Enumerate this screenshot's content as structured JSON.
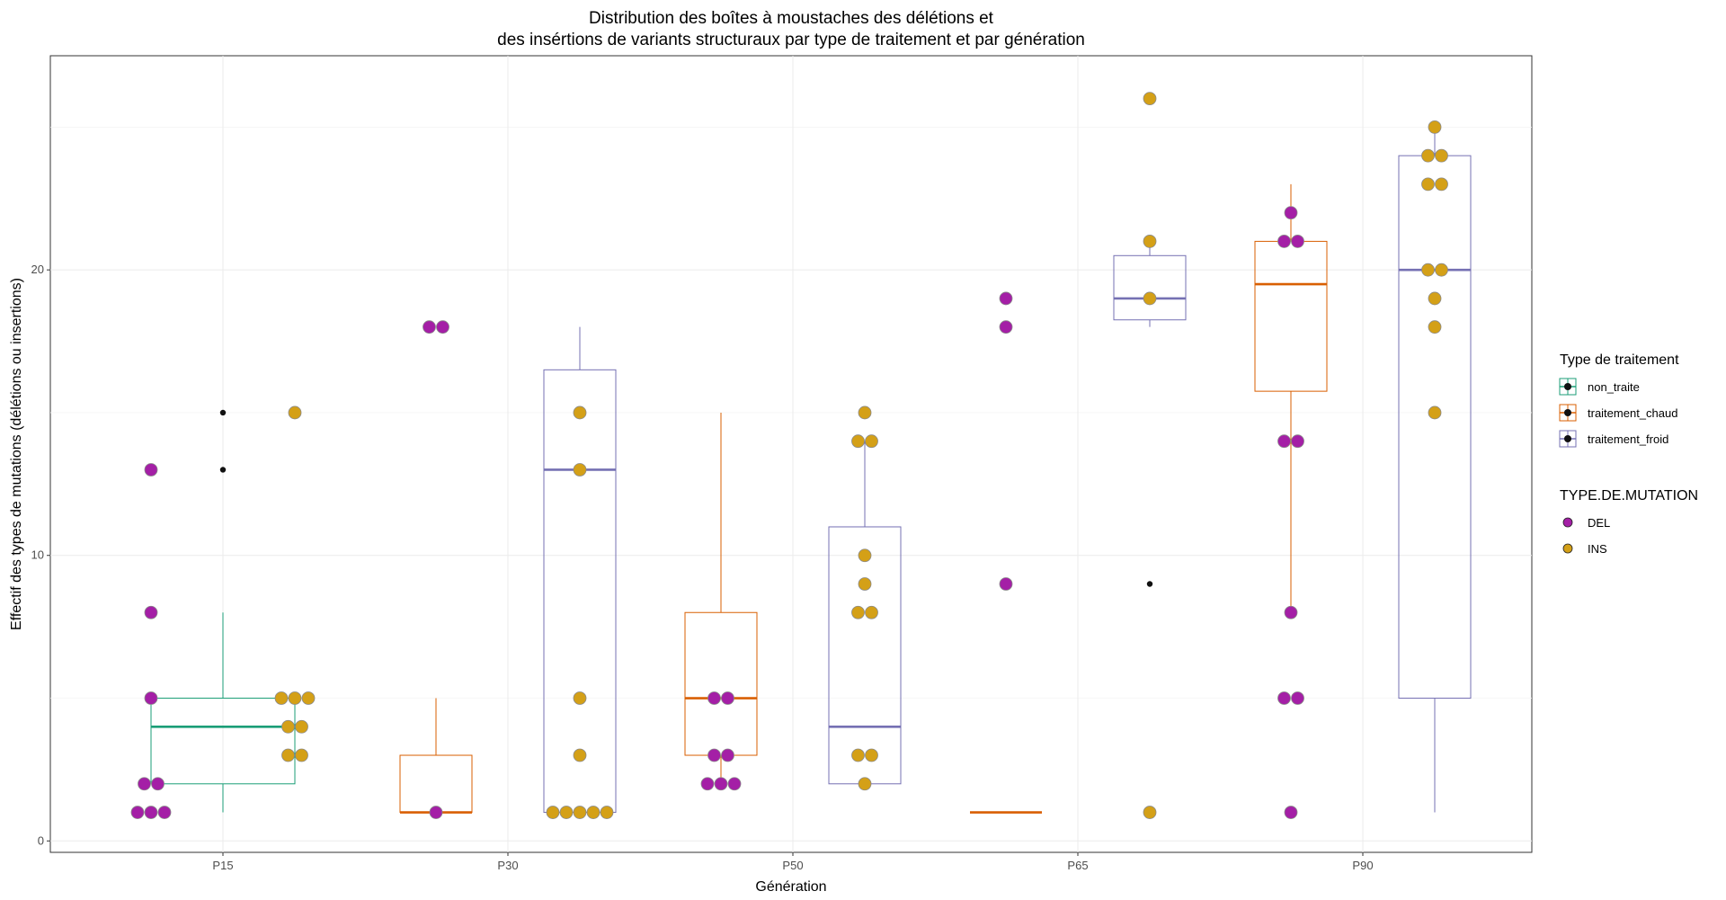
{
  "chart_data": {
    "type": "box",
    "title_lines": [
      "Distribution des boîtes à moustaches des délétions et",
      "des insértions de variants structuraux  par type de traitement et par génération"
    ],
    "xlabel": "Génération",
    "ylabel": "Effectif des types de mutations (délétions ou insertions)",
    "categories": [
      "P15",
      "P30",
      "P50",
      "P65",
      "P90"
    ],
    "y_ticks": [
      0,
      10,
      20
    ],
    "ylim": [
      -0.4,
      27.5
    ],
    "grid": true,
    "legends": [
      {
        "title": "Type de traitement",
        "entries": [
          {
            "label": "non_traite",
            "color": "#1b9e77"
          },
          {
            "label": "traitement_chaud",
            "color": "#d95f02"
          },
          {
            "label": "traitement_froid",
            "color": "#7570b3"
          }
        ]
      },
      {
        "title": "TYPE.DE.MUTATION",
        "entries": [
          {
            "label": "DEL",
            "color": "#a41fa6"
          },
          {
            "label": "INS",
            "color": "#d4a017"
          }
        ]
      }
    ],
    "boxes": [
      {
        "generation": "P15",
        "treatment": "non_traite",
        "color": "#1b9e77",
        "lower": 1,
        "q1": 2,
        "median": 4,
        "q3": 5,
        "upper": 8,
        "outliers": [
          13,
          15
        ]
      },
      {
        "generation": "P30",
        "treatment": "traitement_chaud",
        "color": "#d95f02",
        "lower": 1,
        "q1": 1,
        "median": 1,
        "q3": 3,
        "upper": 5,
        "outliers": []
      },
      {
        "generation": "P30",
        "treatment": "traitement_froid",
        "color": "#7570b3",
        "lower": 1,
        "q1": 1,
        "median": 13,
        "q3": 16.5,
        "upper": 18,
        "outliers": []
      },
      {
        "generation": "P50",
        "treatment": "traitement_chaud",
        "color": "#d95f02",
        "lower": 2,
        "q1": 3,
        "median": 5,
        "q3": 8,
        "upper": 15,
        "outliers": []
      },
      {
        "generation": "P50",
        "treatment": "traitement_froid",
        "color": "#7570b3",
        "lower": 2,
        "q1": 2,
        "median": 4,
        "q3": 11,
        "upper": 14,
        "outliers": []
      },
      {
        "generation": "P65",
        "treatment": "traitement_chaud",
        "color": "#d95f02",
        "lower": 1,
        "q1": 1,
        "median": 1,
        "q3": 1,
        "upper": 1,
        "outliers": []
      },
      {
        "generation": "P65",
        "treatment": "traitement_froid",
        "color": "#7570b3",
        "lower": 18,
        "q1": 18.25,
        "median": 19,
        "q3": 20.5,
        "upper": 21,
        "outliers": [
          9,
          26
        ]
      },
      {
        "generation": "P90",
        "treatment": "traitement_chaud",
        "color": "#d95f02",
        "lower": 8,
        "q1": 15.75,
        "median": 19.5,
        "q3": 21,
        "upper": 23,
        "outliers": []
      },
      {
        "generation": "P90",
        "treatment": "traitement_froid",
        "color": "#7570b3",
        "lower": 1,
        "q1": 5,
        "median": 20,
        "q3": 24,
        "upper": 25,
        "outliers": []
      }
    ],
    "points": [
      {
        "generation": "P15",
        "treatment": "non_traite",
        "mutation": "DEL",
        "values": [
          1,
          1,
          1,
          2,
          2,
          5,
          8,
          13
        ]
      },
      {
        "generation": "P15",
        "treatment": "non_traite",
        "mutation": "INS",
        "values": [
          3,
          3,
          4,
          4,
          5,
          5,
          5,
          15
        ]
      },
      {
        "generation": "P30",
        "treatment": "traitement_chaud",
        "mutation": "DEL",
        "values": [
          1,
          18,
          18
        ]
      },
      {
        "generation": "P30",
        "treatment": "traitement_froid",
        "mutation": "INS",
        "values": [
          1,
          1,
          1,
          1,
          1,
          3,
          5,
          13,
          15
        ]
      },
      {
        "generation": "P50",
        "treatment": "traitement_chaud",
        "mutation": "DEL",
        "values": [
          2,
          2,
          2,
          3,
          3,
          5,
          5
        ]
      },
      {
        "generation": "P50",
        "treatment": "traitement_froid",
        "mutation": "INS",
        "values": [
          2,
          3,
          3,
          8,
          8,
          9,
          10,
          14,
          14,
          15
        ]
      },
      {
        "generation": "P65",
        "treatment": "traitement_chaud",
        "mutation": "DEL",
        "values": [
          9,
          18,
          19
        ]
      },
      {
        "generation": "P65",
        "treatment": "traitement_froid",
        "mutation": "INS",
        "values": [
          1,
          19,
          21,
          26
        ]
      },
      {
        "generation": "P90",
        "treatment": "traitement_chaud",
        "mutation": "DEL",
        "values": [
          1,
          5,
          5,
          8,
          14,
          14,
          21,
          21,
          22
        ]
      },
      {
        "generation": "P90",
        "treatment": "traitement_froid",
        "mutation": "INS",
        "values": [
          15,
          18,
          19,
          20,
          20,
          23,
          23,
          24,
          24,
          25
        ]
      }
    ]
  }
}
